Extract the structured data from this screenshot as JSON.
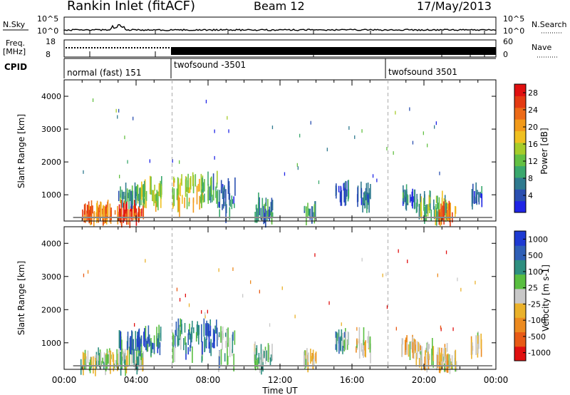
{
  "header": {
    "title": "Rankin Inlet (fitACF)",
    "beam": "Beam 12",
    "date": "17/May/2013"
  },
  "panels": {
    "nsky": {
      "label": "N.Sky",
      "ticks": [
        "10^5",
        "10^0"
      ],
      "right_label": "N.Search",
      "right_ticks": [
        "10^5",
        "10^0"
      ]
    },
    "freq": {
      "label_line1": "Freq.",
      "label_line2": "[MHz]",
      "ticks": [
        "18",
        "8"
      ],
      "right_label": "Nave",
      "right_ticks": [
        "60",
        "0"
      ]
    },
    "cpid": {
      "label": "CPID",
      "modes": [
        "normal (fast) 151",
        "twofsound -3501",
        "twofsound 3501"
      ]
    }
  },
  "colors": {
    "power_scale": [
      "#1f24e6",
      "#2a4fb0",
      "#2f7a8f",
      "#3aa86d",
      "#63c043",
      "#a6cc2a",
      "#f0c020",
      "#f29a1a",
      "#ec6a17",
      "#e43a12",
      "#e01010"
    ],
    "velocity_scale": [
      "#1e3ad2",
      "#2f5fb6",
      "#2e8f80",
      "#59be40",
      "#c8c8c8",
      "#eab12a",
      "#ec8a1f",
      "#e85a15",
      "#e01010"
    ]
  },
  "chart_data": [
    {
      "type": "heatmap",
      "title": "Power",
      "xlabel": "Time UT",
      "ylabel": "Slant Range [km]",
      "xticks": [
        "00:00",
        "04:00",
        "08:00",
        "12:00",
        "16:00",
        "20:00",
        "00:00"
      ],
      "yticks": [
        "1000",
        "2000",
        "3000",
        "4000"
      ],
      "ylim": [
        200,
        4500
      ],
      "colorbar": {
        "label": "Power [dB]",
        "ticks": [
          "4",
          "8",
          "12",
          "16",
          "20",
          "24",
          "28"
        ],
        "range": [
          0,
          30
        ]
      },
      "clusters": [
        {
          "t": [
            0.9,
            3.0
          ],
          "r": [
            250,
            600
          ],
          "v": 22
        },
        {
          "t": [
            3.0,
            4.4
          ],
          "r": [
            250,
            600
          ],
          "v": 26
        },
        {
          "t": [
            3.0,
            4.3
          ],
          "r": [
            850,
            1150
          ],
          "v": 9
        },
        {
          "t": [
            4.1,
            5.4
          ],
          "r": [
            750,
            1300
          ],
          "v": 14
        },
        {
          "t": [
            6.0,
            7.7
          ],
          "r": [
            600,
            1550
          ],
          "v": 17
        },
        {
          "t": [
            7.6,
            8.5
          ],
          "r": [
            850,
            1550
          ],
          "v": 10
        },
        {
          "t": [
            8.5,
            9.5
          ],
          "r": [
            350,
            1300
          ],
          "v": 6
        },
        {
          "t": [
            10.5,
            11.6
          ],
          "r": [
            250,
            800
          ],
          "v": 8
        },
        {
          "t": [
            13.3,
            14.0
          ],
          "r": [
            350,
            600
          ],
          "v": 9
        },
        {
          "t": [
            15.0,
            15.8
          ],
          "r": [
            900,
            1250
          ],
          "v": 6
        },
        {
          "t": [
            16.2,
            17.0
          ],
          "r": [
            650,
            1200
          ],
          "v": 5
        },
        {
          "t": [
            18.7,
            19.5
          ],
          "r": [
            750,
            1100
          ],
          "v": 7
        },
        {
          "t": [
            19.5,
            21.3
          ],
          "r": [
            300,
            900
          ],
          "v": 12
        },
        {
          "t": [
            20.8,
            21.8
          ],
          "r": [
            250,
            550
          ],
          "v": 22
        },
        {
          "t": [
            22.6,
            23.2
          ],
          "r": [
            750,
            1100
          ],
          "v": 6
        }
      ]
    },
    {
      "type": "heatmap",
      "title": "Velocity",
      "xlabel": "Time UT",
      "ylabel": "Slant Range [km]",
      "xticks": [
        "00:00",
        "04:00",
        "08:00",
        "12:00",
        "16:00",
        "20:00",
        "00:00"
      ],
      "yticks": [
        "1000",
        "2000",
        "3000",
        "4000"
      ],
      "ylim": [
        200,
        4500
      ],
      "colorbar": {
        "label": "Velocity [m s-1]",
        "ticks": [
          "1000",
          "500",
          "100",
          "25",
          "-25",
          "-100",
          "-500",
          "-1000"
        ],
        "range": [
          -1000,
          1000
        ]
      },
      "clusters": [
        {
          "t": [
            0.9,
            3.0
          ],
          "r": [
            250,
            600
          ],
          "v": 60
        },
        {
          "t": [
            3.0,
            4.4
          ],
          "r": [
            250,
            650
          ],
          "v": 150
        },
        {
          "t": [
            3.0,
            4.3
          ],
          "r": [
            850,
            1150
          ],
          "v": 500
        },
        {
          "t": [
            4.1,
            5.4
          ],
          "r": [
            750,
            1300
          ],
          "v": 600
        },
        {
          "t": [
            6.0,
            7.7
          ],
          "r": [
            600,
            1550
          ],
          "v": 450
        },
        {
          "t": [
            7.6,
            8.5
          ],
          "r": [
            850,
            1550
          ],
          "v": 700
        },
        {
          "t": [
            8.5,
            9.5
          ],
          "r": [
            350,
            1300
          ],
          "v": 300
        },
        {
          "t": [
            10.5,
            11.6
          ],
          "r": [
            250,
            800
          ],
          "v": 200
        },
        {
          "t": [
            13.3,
            14.0
          ],
          "r": [
            350,
            600
          ],
          "v": -150
        },
        {
          "t": [
            15.0,
            15.8
          ],
          "r": [
            900,
            1250
          ],
          "v": 300
        },
        {
          "t": [
            16.2,
            17.0
          ],
          "r": [
            650,
            1200
          ],
          "v": -150
        },
        {
          "t": [
            18.7,
            19.5
          ],
          "r": [
            750,
            1100
          ],
          "v": -200
        },
        {
          "t": [
            19.5,
            21.3
          ],
          "r": [
            300,
            900
          ],
          "v": -150
        },
        {
          "t": [
            20.8,
            21.8
          ],
          "r": [
            250,
            550
          ],
          "v": -100
        },
        {
          "t": [
            22.6,
            23.2
          ],
          "r": [
            750,
            1100
          ],
          "v": -150
        }
      ]
    }
  ]
}
